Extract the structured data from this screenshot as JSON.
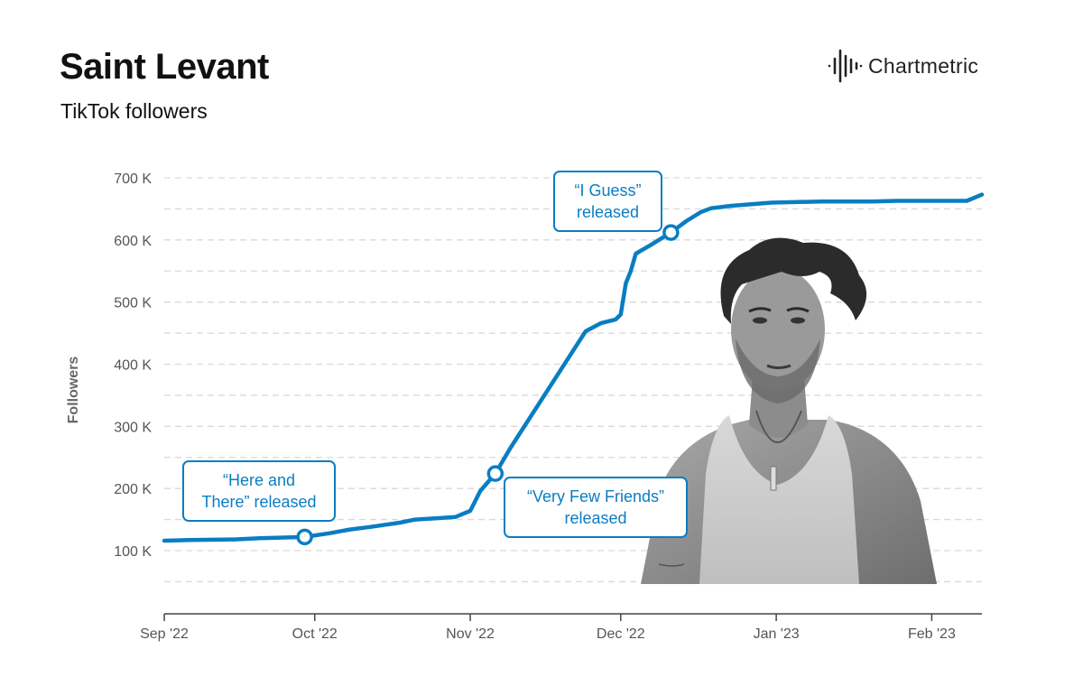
{
  "header": {
    "title": "Saint Levant",
    "subtitle": "TikTok followers",
    "brand": "Chartmetric"
  },
  "colors": {
    "line": "#0a7dc2",
    "grid": "#d9d9d9",
    "text": "#111111",
    "tick": "#555555"
  },
  "icons": [
    "chartmetric-logo-icon",
    "artist-photo"
  ],
  "chart_data": {
    "type": "line",
    "title": "Saint Levant",
    "subtitle": "TikTok followers",
    "ylabel": "Followers",
    "xlabel": "",
    "ylim": [
      40,
      710
    ],
    "y_ticks": [
      {
        "value": 100,
        "label": "100 K"
      },
      {
        "value": 200,
        "label": "200 K"
      },
      {
        "value": 300,
        "label": "300 K"
      },
      {
        "value": 400,
        "label": "400 K"
      },
      {
        "value": 500,
        "label": "500 K"
      },
      {
        "value": 600,
        "label": "600 K"
      },
      {
        "value": 700,
        "label": "700 K"
      }
    ],
    "x_ticks": [
      {
        "date": "2022-09-01",
        "label": "Sep '22"
      },
      {
        "date": "2022-10-01",
        "label": "Oct '22"
      },
      {
        "date": "2022-11-01",
        "label": "Nov '22"
      },
      {
        "date": "2022-12-01",
        "label": "Dec '22"
      },
      {
        "date": "2023-01-01",
        "label": "Jan '23"
      },
      {
        "date": "2023-02-01",
        "label": "Feb '23"
      }
    ],
    "x_range": [
      "2022-09-01",
      "2023-02-11"
    ],
    "grid": true,
    "series": [
      {
        "name": "",
        "points": [
          {
            "date": "2022-09-01",
            "value": 116
          },
          {
            "date": "2022-09-06",
            "value": 117
          },
          {
            "date": "2022-09-15",
            "value": 118
          },
          {
            "date": "2022-09-20",
            "value": 120
          },
          {
            "date": "2022-09-29",
            "value": 122
          },
          {
            "date": "2022-10-04",
            "value": 128
          },
          {
            "date": "2022-10-08",
            "value": 134
          },
          {
            "date": "2022-10-12",
            "value": 138
          },
          {
            "date": "2022-10-18",
            "value": 145
          },
          {
            "date": "2022-10-21",
            "value": 150
          },
          {
            "date": "2022-10-25",
            "value": 152
          },
          {
            "date": "2022-10-29",
            "value": 154
          },
          {
            "date": "2022-11-01",
            "value": 164
          },
          {
            "date": "2022-11-03",
            "value": 196
          },
          {
            "date": "2022-11-06",
            "value": 224
          },
          {
            "date": "2022-11-09",
            "value": 265
          },
          {
            "date": "2022-11-24",
            "value": 453
          },
          {
            "date": "2022-11-27",
            "value": 466
          },
          {
            "date": "2022-11-30",
            "value": 472
          },
          {
            "date": "2022-12-01",
            "value": 480
          },
          {
            "date": "2022-12-02",
            "value": 530
          },
          {
            "date": "2022-12-03",
            "value": 550
          },
          {
            "date": "2022-12-04",
            "value": 578
          },
          {
            "date": "2022-12-07",
            "value": 592
          },
          {
            "date": "2022-12-11",
            "value": 612
          },
          {
            "date": "2022-12-14",
            "value": 630
          },
          {
            "date": "2022-12-17",
            "value": 645
          },
          {
            "date": "2022-12-19",
            "value": 651
          },
          {
            "date": "2022-12-23",
            "value": 655
          },
          {
            "date": "2022-12-31",
            "value": 660
          },
          {
            "date": "2023-01-10",
            "value": 662
          },
          {
            "date": "2023-01-20",
            "value": 662
          },
          {
            "date": "2023-01-25",
            "value": 663
          },
          {
            "date": "2023-02-08",
            "value": 663
          },
          {
            "date": "2023-02-11",
            "value": 673
          }
        ]
      }
    ],
    "annotations": [
      {
        "date": "2022-09-29",
        "value": 122,
        "lines": [
          "“Here and",
          "There” released"
        ]
      },
      {
        "date": "2022-11-06",
        "value": 224,
        "lines": [
          "“Very Few Friends”",
          "released"
        ]
      },
      {
        "date": "2022-12-11",
        "value": 612,
        "lines": [
          "“I Guess”",
          "released"
        ]
      }
    ]
  }
}
